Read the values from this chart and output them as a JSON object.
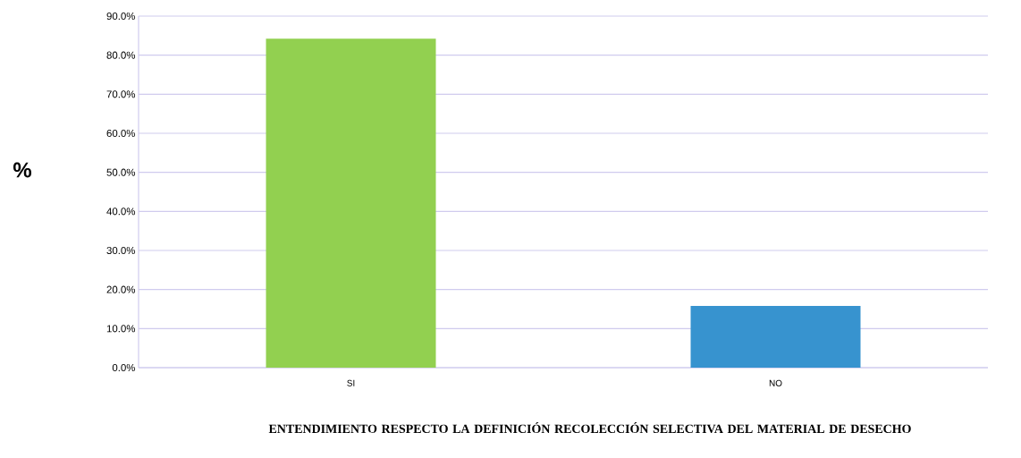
{
  "chart_data": {
    "type": "bar",
    "xlabel": "ENTENDIMIENTO RESPECTO LA DEFINICIÓN RECOLECCIÓN SELECTIVA DEL MATERIAL DE DESECHO",
    "ylabel": "%",
    "categories": [
      "SI",
      "NO"
    ],
    "values": [
      84.2,
      15.8
    ],
    "colors": [
      "#92d050",
      "#3793cf"
    ],
    "ylim": [
      0,
      90
    ],
    "yticks": [
      {
        "value": 0,
        "label": "0.0%"
      },
      {
        "value": 10,
        "label": "10.0%"
      },
      {
        "value": 20,
        "label": "20.0%"
      },
      {
        "value": 30,
        "label": "30.0%"
      },
      {
        "value": 40,
        "label": "40.0%"
      },
      {
        "value": 50,
        "label": "50.0%"
      },
      {
        "value": 60,
        "label": "60.0%"
      },
      {
        "value": 70,
        "label": "70.0%"
      },
      {
        "value": 80,
        "label": "80.0%"
      },
      {
        "value": 90,
        "label": "90.0%"
      }
    ],
    "grid": "y"
  }
}
